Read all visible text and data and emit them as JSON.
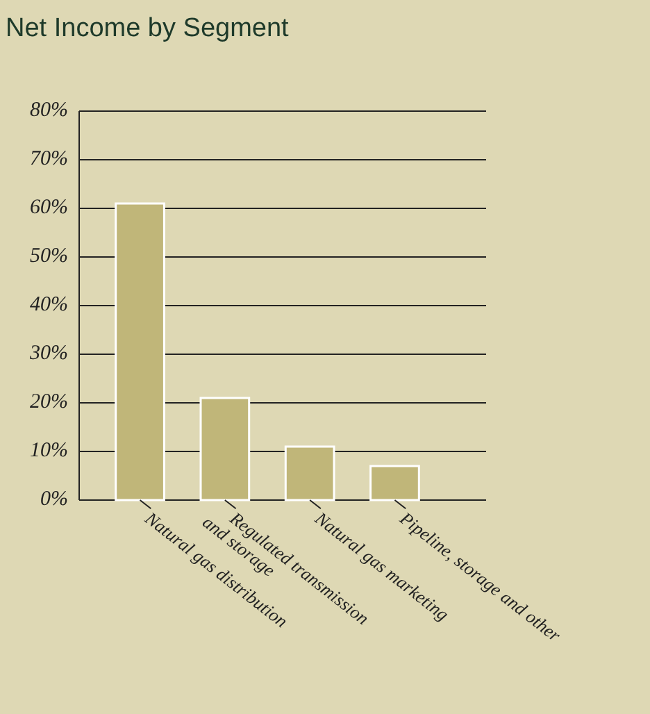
{
  "chart_data": {
    "type": "bar",
    "title": "Net Income by Segment",
    "categories": [
      "Natural gas distribution",
      "Regulated transmission\nand storage",
      "Natural gas marketing",
      "Pipeline, storage and other"
    ],
    "values": [
      61,
      21,
      11,
      7
    ],
    "color": "#c0b679",
    "ylim": [
      0,
      80
    ],
    "yticks": [
      {
        "value": 0,
        "label": "0%"
      },
      {
        "value": 10,
        "label": "10%"
      },
      {
        "value": 20,
        "label": "20%"
      },
      {
        "value": 30,
        "label": "30%"
      },
      {
        "value": 40,
        "label": "40%"
      },
      {
        "value": 50,
        "label": "50%"
      },
      {
        "value": 60,
        "label": "60%"
      },
      {
        "value": 70,
        "label": "70%"
      },
      {
        "value": 80,
        "label": "80%"
      }
    ],
    "grid": true
  }
}
